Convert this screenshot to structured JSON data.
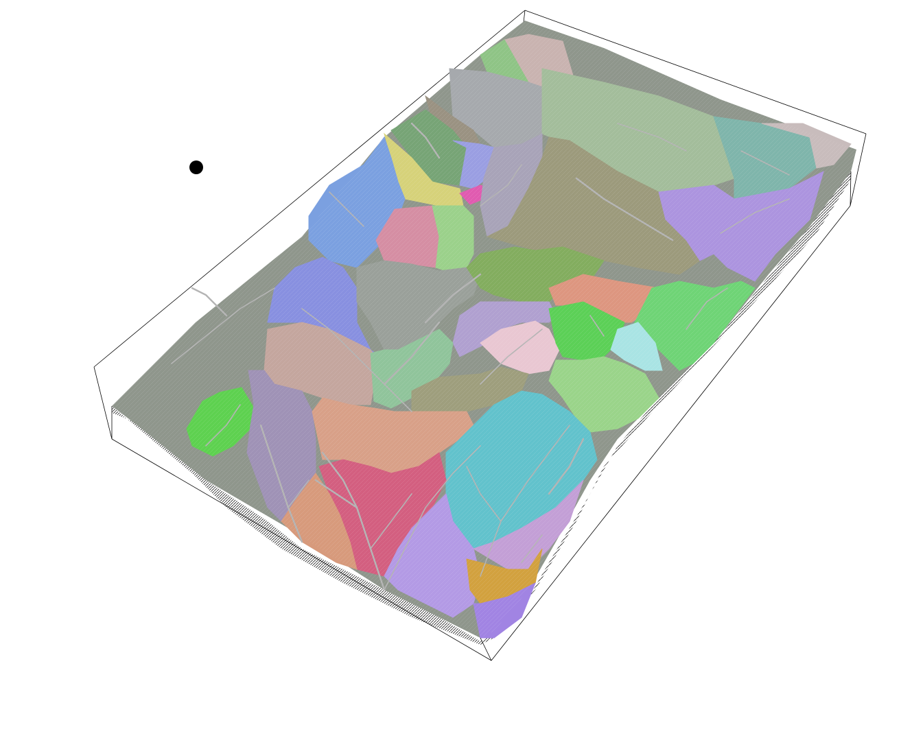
{
  "scene": {
    "kind": "3d-terrain-watershed-map",
    "background_color": "#ffffff",
    "frame_color": "#000000",
    "base_terrain_color": "#8f968c",
    "underside_color": "#3a3a3a",
    "stream_color": "#b4b4b4"
  },
  "marker": {
    "color": "#000000"
  },
  "watersheds": [
    {
      "id": "w01",
      "color": "#c9b3b0"
    },
    {
      "id": "w02",
      "color": "#8fc486"
    },
    {
      "id": "w03",
      "color": "#a6a9ad"
    },
    {
      "id": "w04",
      "color": "#9a9282"
    },
    {
      "id": "w05",
      "color": "#a3bd9b"
    },
    {
      "id": "w06",
      "color": "#7fb5ab"
    },
    {
      "id": "w07",
      "color": "#c8bcbc"
    },
    {
      "id": "w08",
      "color": "#77a476"
    },
    {
      "id": "w09",
      "color": "#d6d27a"
    },
    {
      "id": "w10",
      "color": "#9a9ee2"
    },
    {
      "id": "w11",
      "color": "#e05bb0"
    },
    {
      "id": "w12",
      "color": "#7ba0e0"
    },
    {
      "id": "w13",
      "color": "#d58ea3"
    },
    {
      "id": "w14",
      "color": "#9bd18b"
    },
    {
      "id": "w15",
      "color": "#a8a3b8"
    },
    {
      "id": "w16",
      "color": "#9c9a7c"
    },
    {
      "id": "w17",
      "color": "#ac94df"
    },
    {
      "id": "w18",
      "color": "#8890e0"
    },
    {
      "id": "w19",
      "color": "#9aa09a"
    },
    {
      "id": "w20",
      "color": "#83ad5f"
    },
    {
      "id": "w21",
      "color": "#dd9680"
    },
    {
      "id": "w22",
      "color": "#6fd476"
    },
    {
      "id": "w23",
      "color": "#b0a0d0"
    },
    {
      "id": "w24",
      "color": "#e9c7d2"
    },
    {
      "id": "w25",
      "color": "#5cd057"
    },
    {
      "id": "w26",
      "color": "#a9e4e4"
    },
    {
      "id": "w27",
      "color": "#c4a69e"
    },
    {
      "id": "w28",
      "color": "#90c49b"
    },
    {
      "id": "w29",
      "color": "#9e9e7d"
    },
    {
      "id": "w30",
      "color": "#9ad48a"
    },
    {
      "id": "w31",
      "color": "#5ed150"
    },
    {
      "id": "w32",
      "color": "#9f92b6"
    },
    {
      "id": "w33",
      "color": "#d8a088"
    },
    {
      "id": "w34",
      "color": "#62c2cc"
    },
    {
      "id": "w35",
      "color": "#d35f80"
    },
    {
      "id": "w36",
      "color": "#d79a7c"
    },
    {
      "id": "w37",
      "color": "#b39ae5"
    },
    {
      "id": "w38",
      "color": "#c39fd6"
    },
    {
      "id": "w39",
      "color": "#d2a13f"
    },
    {
      "id": "w40",
      "color": "#a184e3"
    }
  ]
}
